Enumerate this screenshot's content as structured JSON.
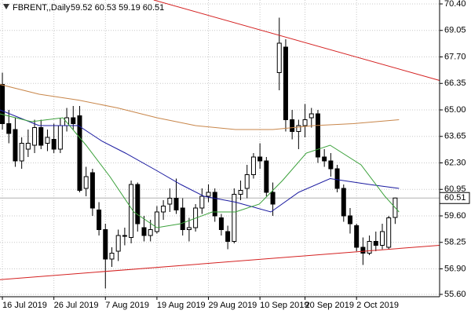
{
  "chart_data": {
    "type": "candlestick",
    "title": "FBRENT,,Daily",
    "ohlc_label": "59.52 60.53 59.19 60.51",
    "categories": [
      "16 Jul 2019",
      null,
      null,
      null,
      null,
      null,
      null,
      null,
      "26 Jul 2019",
      null,
      null,
      null,
      null,
      null,
      null,
      null,
      "7 Aug 2019",
      null,
      null,
      null,
      null,
      null,
      null,
      null,
      "19 Aug 2019",
      null,
      null,
      null,
      null,
      null,
      null,
      null,
      "29 Aug 2019",
      null,
      null,
      null,
      null,
      null,
      null,
      null,
      "10 Sep 2019",
      null,
      null,
      null,
      null,
      null,
      null,
      "20 Sep 2019",
      null,
      null,
      null,
      null,
      null,
      null,
      null,
      "2 Oct 2019",
      null,
      null,
      null,
      null,
      null,
      null
    ],
    "open": [
      66.3,
      64.3,
      64.0,
      62.4,
      63.0,
      63.2,
      64.1,
      63.3,
      63.5,
      63.0,
      64.2,
      64.6,
      64.7,
      61.0,
      61.8,
      59.9,
      58.9,
      57.4,
      57.8,
      58.6,
      58.5,
      61.2,
      59.0,
      58.6,
      58.8,
      59.8,
      60.2,
      60.5,
      60.0,
      58.9,
      59.0,
      60.0,
      60.6,
      60.8,
      59.5,
      58.8,
      58.3,
      60.7,
      61.0,
      61.7,
      62.6,
      62.4,
      60.8,
      66.9,
      68.2,
      64.5,
      63.9,
      64.2,
      64.6,
      64.8,
      62.6,
      62.4,
      62.0,
      61.0,
      59.6,
      59.1,
      58.0,
      57.7,
      58.3,
      58.1,
      58.0,
      59.52
    ],
    "high": [
      66.9,
      65.0,
      64.6,
      63.6,
      64.0,
      64.5,
      64.5,
      64.0,
      64.3,
      64.6,
      65.1,
      65.2,
      65.2,
      62.1,
      62.0,
      60.3,
      59.2,
      58.0,
      58.9,
      59.0,
      61.4,
      61.3,
      59.6,
      59.4,
      60.1,
      60.4,
      61.0,
      61.5,
      60.5,
      59.5,
      60.2,
      61.0,
      61.2,
      61.0,
      59.7,
      59.1,
      61.0,
      61.4,
      62.2,
      62.8,
      63.3,
      62.6,
      61.3,
      69.7,
      68.6,
      65.0,
      64.5,
      65.3,
      65.1,
      65.0,
      63.0,
      62.8,
      62.2,
      61.2,
      60.0,
      59.2,
      58.5,
      58.6,
      58.8,
      59.2,
      59.6,
      60.53
    ],
    "low": [
      64.0,
      63.3,
      62.1,
      62.0,
      62.6,
      62.8,
      63.0,
      62.9,
      62.8,
      62.8,
      63.9,
      64.0,
      60.8,
      60.6,
      59.6,
      58.6,
      55.9,
      57.0,
      57.3,
      58.1,
      58.2,
      58.8,
      58.3,
      58.3,
      58.7,
      59.4,
      59.8,
      59.7,
      58.6,
      58.3,
      58.8,
      59.7,
      60.3,
      59.3,
      58.6,
      57.9,
      58.2,
      60.4,
      60.5,
      61.5,
      62.0,
      60.6,
      59.6,
      66.0,
      63.9,
      63.5,
      63.0,
      63.6,
      64.1,
      62.3,
      62.1,
      61.6,
      60.8,
      59.3,
      58.7,
      57.8,
      57.1,
      57.6,
      57.8,
      57.9,
      57.9,
      59.19
    ],
    "close": [
      64.3,
      63.8,
      62.4,
      63.3,
      63.3,
      64.1,
      63.2,
      63.6,
      63.0,
      64.2,
      64.6,
      64.3,
      60.9,
      61.6,
      60.0,
      58.9,
      57.4,
      57.7,
      58.6,
      58.6,
      61.2,
      59.2,
      58.6,
      58.9,
      59.8,
      60.1,
      60.5,
      59.9,
      58.9,
      59.0,
      60.0,
      60.6,
      60.8,
      59.6,
      58.9,
      58.3,
      60.7,
      60.9,
      61.7,
      62.6,
      62.4,
      60.8,
      60.2,
      68.4,
      64.5,
      63.9,
      64.2,
      64.5,
      64.8,
      62.6,
      62.4,
      62.0,
      61.0,
      59.6,
      59.2,
      58.0,
      57.7,
      58.3,
      58.1,
      58.8,
      59.5,
      60.51
    ],
    "up_color": "#ffffff",
    "down_color": "#000000",
    "overlays": [
      {
        "color": "#c8864a",
        "x": [
          -0.4,
          5.7,
          11.8,
          17.9,
          24,
          30,
          36.2,
          42,
          48.4,
          54.5,
          61.6
        ],
        "values": [
          66.3,
          65.8,
          65.5,
          65.1,
          64.6,
          64.2,
          64.0,
          64.0,
          64.2,
          64.3,
          64.5
        ]
      },
      {
        "color": "#1a1aa0",
        "x": [
          -0.4,
          5.7,
          11.8,
          15.5,
          19.1,
          24,
          27.7,
          31.3,
          36.2,
          41.7,
          46,
          50.9,
          57,
          61.6
        ],
        "values": [
          65.0,
          64.2,
          64.2,
          63.4,
          62.8,
          61.9,
          61.2,
          60.6,
          60.3,
          59.8,
          60.8,
          61.5,
          61.2,
          61.0
        ]
      },
      {
        "color": "#3aa03a",
        "x": [
          -0.4,
          4.5,
          9.4,
          13,
          16.7,
          20.4,
          24,
          27.7,
          32.6,
          36.2,
          39.9,
          43.5,
          47.2,
          50.9,
          55.7,
          59.4,
          61.6
        ],
        "values": [
          64.8,
          64.4,
          64.6,
          63.2,
          61.6,
          59.8,
          59.0,
          59.2,
          59.8,
          59.8,
          60.2,
          61.4,
          62.8,
          63.2,
          62.2,
          60.6,
          59.8
        ]
      },
      {
        "color": "#d42020",
        "x": [
          23.5,
          67.9
        ],
        "values": [
          70.6,
          66.5
        ]
      },
      {
        "color": "#d42020",
        "x": [
          -0.4,
          67.9
        ],
        "values": [
          56.35,
          58.1
        ]
      }
    ],
    "current_price": {
      "value": 60.51,
      "label": "60.51"
    },
    "xlim": [
      -0.37,
      67.9
    ],
    "ylim": [
      55.48,
      70.6
    ],
    "yticks": [
      {
        "value": 70.4,
        "label": "70.40"
      },
      69.05,
      {
        "value": 67.7,
        "label": "67.70"
      },
      66.35,
      {
        "value": 65,
        "label": "65.00"
      },
      63.65,
      {
        "value": 62.3,
        "label": "62.30"
      },
      60.95,
      {
        "value": 59.6,
        "label": "59.60"
      },
      58.25,
      {
        "value": 56.9,
        "label": "56.90"
      },
      {
        "value": 55.6,
        "label": "55.60"
      }
    ],
    "grid": true
  }
}
